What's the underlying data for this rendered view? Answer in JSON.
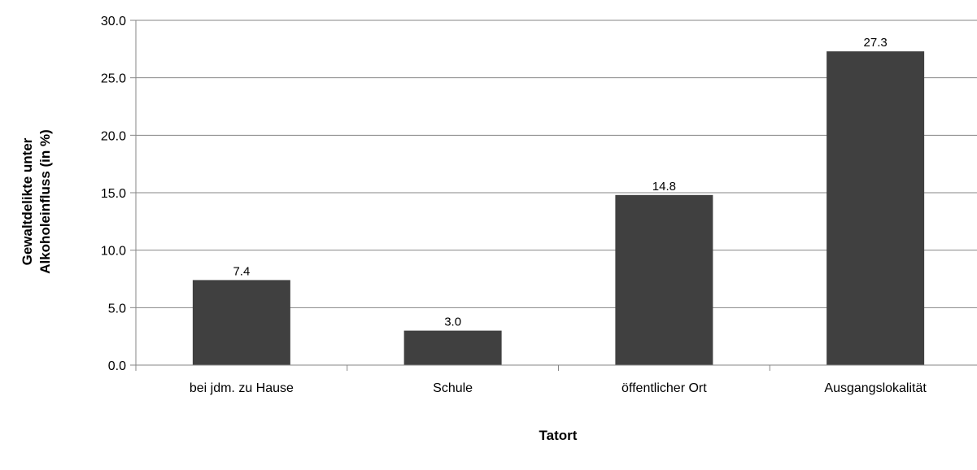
{
  "chart_data": {
    "type": "bar",
    "title": "",
    "xlabel": "Tatort",
    "ylabel_lines": [
      "Gewaltdelikte unter",
      "Alkoholeinfluss (in %)"
    ],
    "categories": [
      "bei jdm. zu Hause",
      "Schule",
      "öffentlicher Ort",
      "Ausgangslokalität"
    ],
    "values": [
      7.4,
      3.0,
      14.8,
      27.3
    ],
    "value_labels": [
      "7.4",
      "3.0",
      "14.8",
      "27.3"
    ],
    "ylim": [
      0,
      30
    ],
    "yticks": [
      0,
      5,
      10,
      15,
      20,
      25,
      30
    ],
    "ytick_labels": [
      "0.0",
      "5.0",
      "10.0",
      "15.0",
      "20.0",
      "25.0",
      "30.0"
    ],
    "grid": true,
    "legend": "none",
    "colors": {
      "bar": "#404040",
      "grid": "#868686",
      "axis": "#868686"
    }
  }
}
